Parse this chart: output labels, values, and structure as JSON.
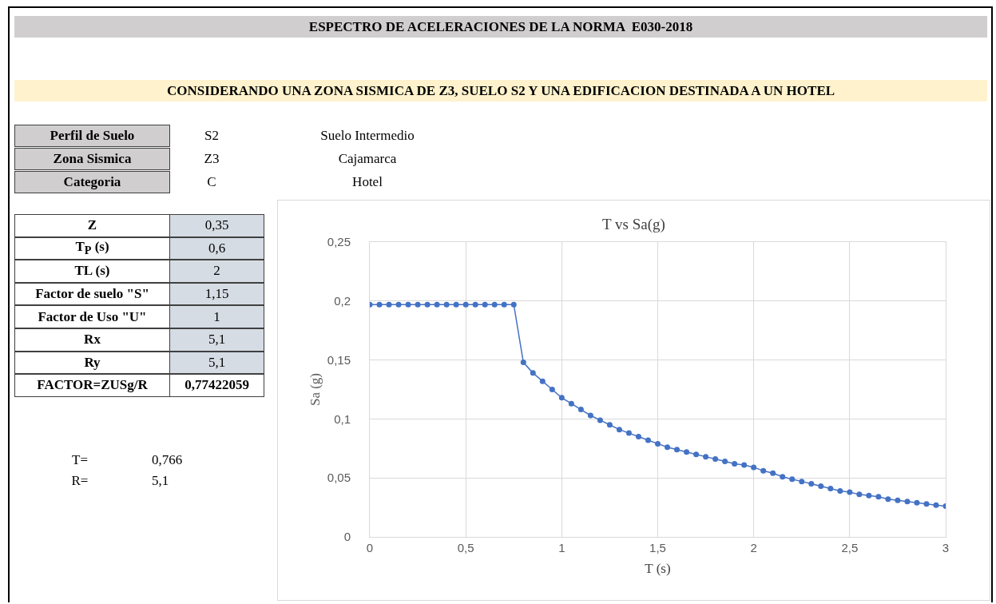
{
  "chart_data": [
    {
      "type": "other",
      "title": "ESPECTRO DE ACELERACIONES DE LA NORMA  E030-2018",
      "subtitle": "CONSIDERANDO UNA ZONA SISMICA DE Z3, SUELO S2 Y UNA EDIFICACION DESTINADA A UN HOTEL",
      "annotations": [
        "Perfil de Suelo",
        "S2",
        "Suelo Intermedio",
        "Zona Sismica",
        "Z3",
        "Cajamarca",
        "Categoria",
        "C",
        "Hotel",
        "Z",
        "0,35",
        "T$_{P}$ (s)",
        "0,6",
        "TL (s)",
        "2",
        "Factor de suelo \"S\"",
        "1,15",
        "Factor de Uso \"U\"",
        "1",
        "Rx",
        "5,1",
        "Ry",
        "5,1",
        "FACTOR=ZUSg/R",
        "0,77422059",
        "T=",
        "0,766",
        "R=",
        "5,1"
      ]
    },
    {
      "type": "line",
      "title": "T vs Sa(g)",
      "xlabel": "T (s)",
      "ylabel": "Sa (g)",
      "x": [
        0,
        0.05,
        0.1,
        0.15,
        0.2,
        0.25,
        0.3,
        0.35,
        0.4,
        0.45,
        0.5,
        0.55,
        0.6,
        0.65,
        0.7,
        0.75,
        0.8,
        0.85,
        0.9,
        0.95,
        1.0,
        1.05,
        1.1,
        1.15,
        1.2,
        1.25,
        1.3,
        1.35,
        1.4,
        1.45,
        1.5,
        1.55,
        1.6,
        1.65,
        1.7,
        1.75,
        1.8,
        1.85,
        1.9,
        1.95,
        2.0,
        2.05,
        2.1,
        2.15,
        2.2,
        2.25,
        2.3,
        2.35,
        2.4,
        2.45,
        2.5,
        2.55,
        2.6,
        2.65,
        2.7,
        2.75,
        2.8,
        2.85,
        2.9,
        2.95,
        3.0
      ],
      "series": [
        {
          "color": "#4472c4",
          "values": [
            0.197,
            0.197,
            0.197,
            0.197,
            0.197,
            0.197,
            0.197,
            0.197,
            0.197,
            0.197,
            0.197,
            0.197,
            0.197,
            0.197,
            0.197,
            0.197,
            0.148,
            0.139,
            0.132,
            0.125,
            0.118,
            0.113,
            0.108,
            0.103,
            0.099,
            0.095,
            0.091,
            0.088,
            0.085,
            0.082,
            0.079,
            0.076,
            0.074,
            0.072,
            0.07,
            0.068,
            0.066,
            0.064,
            0.062,
            0.061,
            0.059,
            0.056,
            0.054,
            0.051,
            0.049,
            0.047,
            0.045,
            0.043,
            0.041,
            0.039,
            0.038,
            0.036,
            0.035,
            0.034,
            0.032,
            0.031,
            0.03,
            0.029,
            0.028,
            0.027,
            0.026
          ]
        }
      ],
      "xlim": [
        0,
        3
      ],
      "xticks": [
        0,
        {
          "value": 0.5,
          "label": "0,5"
        },
        1,
        {
          "value": 1.5,
          "label": "1,5"
        },
        2,
        {
          "value": 2.5,
          "label": "2,5"
        },
        3
      ],
      "ylim": [
        0,
        0.25
      ],
      "yticks": [
        0,
        {
          "value": 0.05,
          "label": "0,05"
        },
        {
          "value": 0.1,
          "label": "0,1"
        },
        {
          "value": 0.15,
          "label": "0,15"
        },
        {
          "value": 0.2,
          "label": "0,2"
        },
        {
          "value": 0.25,
          "label": "0,25"
        }
      ],
      "grid": true,
      "marker": "circle",
      "line_style": "solid"
    }
  ]
}
